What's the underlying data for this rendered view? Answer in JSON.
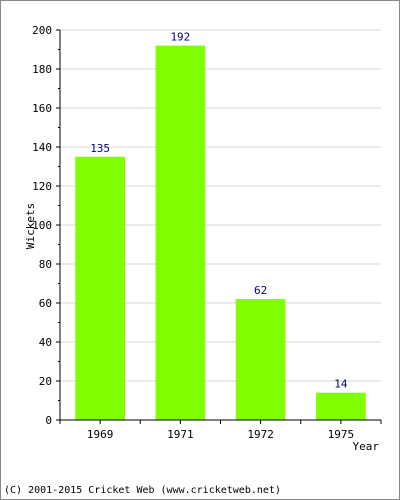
{
  "chart_data": {
    "type": "bar",
    "categories": [
      "1969",
      "1971",
      "1972",
      "1975"
    ],
    "values": [
      135,
      192,
      62,
      14
    ],
    "data_labels": [
      "135",
      "192",
      "62",
      "14"
    ],
    "title": "",
    "xlabel": "Year",
    "ylabel": "Wickets",
    "ylim": [
      0,
      200
    ],
    "yticks": [
      "0",
      "20",
      "40",
      "60",
      "80",
      "100",
      "120",
      "140",
      "160",
      "180",
      "200"
    ],
    "grid": true,
    "legend": "none",
    "bar_color": "#80ff00",
    "label_color": "#000080"
  },
  "footer": {
    "text": "(C) 2001-2015 Cricket Web (www.cricketweb.net)"
  }
}
